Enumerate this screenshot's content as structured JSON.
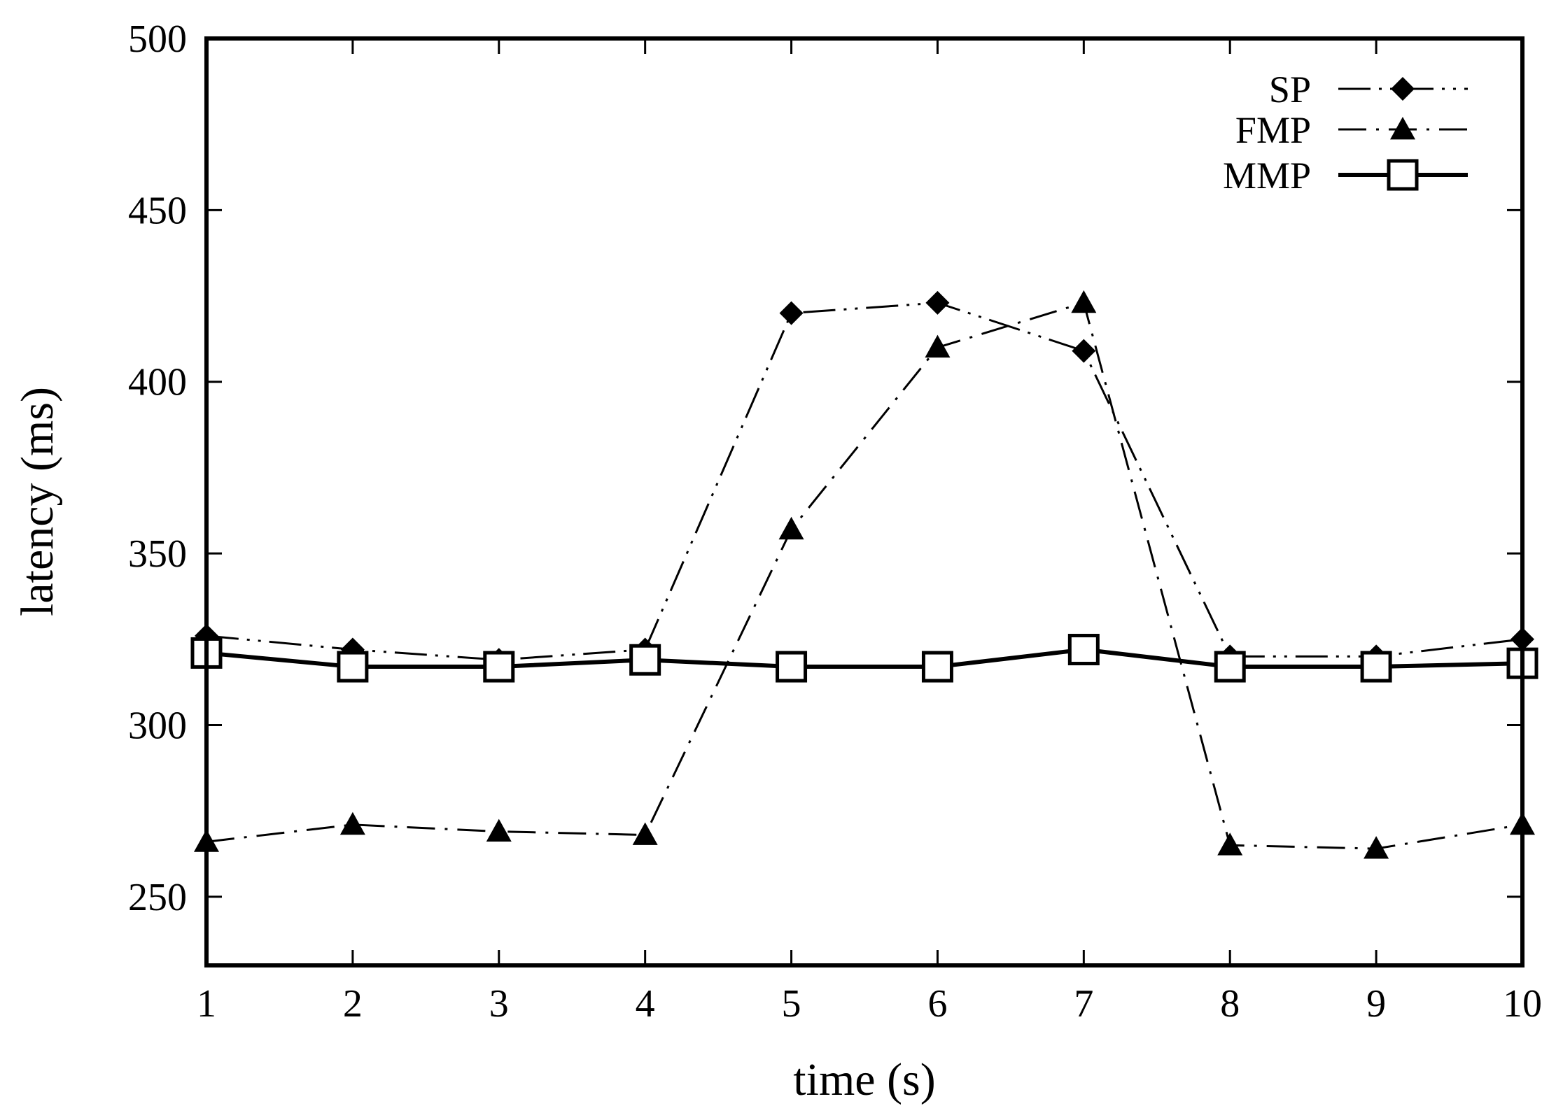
{
  "chart_data": {
    "type": "line",
    "title": "",
    "xlabel": "time (s)",
    "ylabel": "latency (ms)",
    "x": [
      1,
      2,
      3,
      4,
      5,
      6,
      7,
      8,
      9,
      10
    ],
    "xlim": [
      1,
      10
    ],
    "ylim": [
      230,
      500
    ],
    "yticks": [
      250,
      300,
      350,
      400,
      450,
      500
    ],
    "grid": false,
    "legend_position": "top-right",
    "series": [
      {
        "name": "SP",
        "marker": "diamond",
        "line_style": "long-dash-dot-dot",
        "values": [
          326,
          322,
          319,
          322,
          420,
          423,
          409,
          320,
          320,
          325
        ]
      },
      {
        "name": "FMP",
        "marker": "triangle",
        "line_style": "dash-dot",
        "values": [
          266,
          271,
          269,
          268,
          357,
          410,
          423,
          265,
          264,
          271
        ]
      },
      {
        "name": "MMP",
        "marker": "square",
        "line_style": "solid",
        "values": [
          321,
          317,
          317,
          319,
          317,
          317,
          322,
          317,
          317,
          318
        ]
      }
    ]
  }
}
